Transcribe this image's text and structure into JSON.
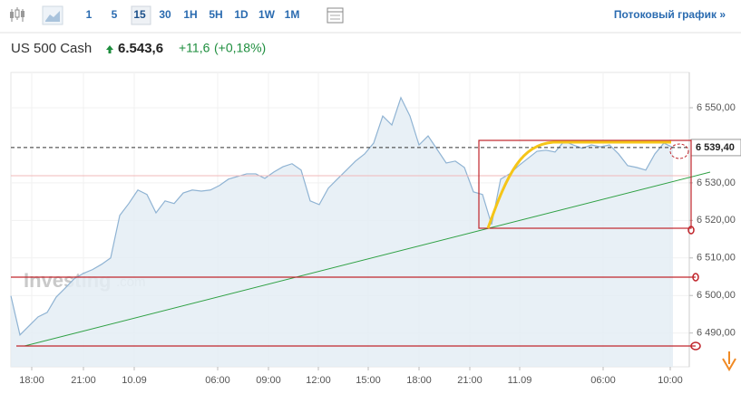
{
  "toolbar": {
    "intervals": [
      "1",
      "5",
      "15",
      "30",
      "1H",
      "5H",
      "1D",
      "1W",
      "1M"
    ],
    "selected": 2,
    "stream_link": "Потоковый график »"
  },
  "instrument": {
    "name": "US 500 Cash",
    "price": "6.543,6",
    "change": "+11,6",
    "change_pct": "(+0,18%)"
  },
  "chart_data": {
    "type": "area",
    "color": "#8fb3d3",
    "fill": "#e4edf5",
    "watermark": "Investing",
    "watermark_suffix": ".com",
    "values": [
      6499.9,
      6489.5,
      6491.9,
      6494.3,
      6495.5,
      6499.6,
      6502.0,
      6504.5,
      6505.9,
      6506.9,
      6508.3,
      6510.0,
      6521.3,
      6524.5,
      6528.1,
      6526.9,
      6522.0,
      6525.2,
      6524.5,
      6527.3,
      6528.1,
      6527.8,
      6528.1,
      6529.3,
      6531.0,
      6531.7,
      6532.4,
      6532.4,
      6531.2,
      6532.9,
      6534.3,
      6535.1,
      6533.4,
      6525.2,
      6524.2,
      6528.6,
      6531.0,
      6533.4,
      6535.8,
      6537.7,
      6540.6,
      6547.8,
      6545.4,
      6552.7,
      6547.8,
      6540.1,
      6542.5,
      6538.9,
      6535.3,
      6535.8,
      6534.1,
      6527.6,
      6526.9,
      6518.9,
      6531.0,
      6532.4,
      6534.6,
      6536.5,
      6538.4,
      6538.7,
      6538.2,
      6541.1,
      6540.1,
      6539.2,
      6540.1,
      6539.6,
      6540.1,
      6537.7,
      6534.6,
      6534.1,
      6533.4,
      6537.7,
      6540.6,
      6539.4
    ],
    "xlim": [
      0,
      74.8
    ],
    "xticks": [
      {
        "value": 2.3,
        "label": "18:00"
      },
      {
        "value": 8,
        "label": "21:00"
      },
      {
        "value": 13.6,
        "label": "10.09"
      },
      {
        "value": 22.8,
        "label": "06:00"
      },
      {
        "value": 28.4,
        "label": "09:00"
      },
      {
        "value": 33.9,
        "label": "12:00"
      },
      {
        "value": 39.4,
        "label": "15:00"
      },
      {
        "value": 45,
        "label": "18:00"
      },
      {
        "value": 50.6,
        "label": "21:00"
      },
      {
        "value": 56.1,
        "label": "11.09"
      },
      {
        "value": 65.3,
        "label": "06:00"
      },
      {
        "value": 72.7,
        "label": "10:00"
      }
    ],
    "ylim": [
      6481,
      6559.4
    ],
    "yticks": [
      {
        "value": 6490,
        "label": "6 490,00"
      },
      {
        "value": 6500,
        "label": "6 500,00"
      },
      {
        "value": 6510,
        "label": "6 510,00"
      },
      {
        "value": 6520,
        "label": "6 520,00"
      },
      {
        "value": 6530,
        "label": "6 530,00"
      },
      {
        "value": 6550,
        "label": "6 550,00"
      }
    ],
    "grid": true,
    "last_price": {
      "value": 6539.4,
      "label": "6 539,40"
    }
  }
}
